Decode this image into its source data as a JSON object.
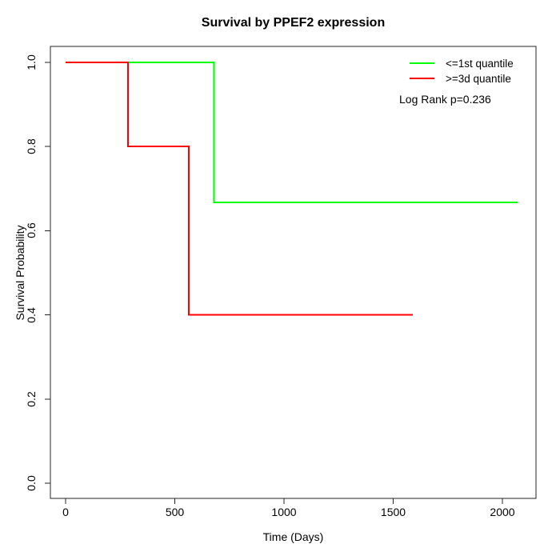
{
  "chart_data": {
    "type": "line",
    "subtype": "kaplan_meier_step",
    "title": "Survival by PPEF2 expression",
    "xlabel": "Time (Days)",
    "ylabel": "Survival Probability",
    "xlim": [
      0,
      2070
    ],
    "ylim": [
      0.0,
      1.0
    ],
    "x_tick_labels": [
      "0",
      "500",
      "1000",
      "1500",
      "2000"
    ],
    "x_tick_values": [
      0,
      500,
      1000,
      1500,
      2000
    ],
    "y_tick_labels": [
      "0.0",
      "0.2",
      "0.4",
      "0.6",
      "0.8",
      "1.0"
    ],
    "y_tick_values": [
      0.0,
      0.2,
      0.4,
      0.6,
      0.8,
      1.0
    ],
    "grid": false,
    "legend_position": "top-right-inside",
    "annotation": "Log Rank p=0.236",
    "axis_color": "#262626",
    "series": [
      {
        "name": "<=1st quantile",
        "color": "#00ff00",
        "points": [
          [
            0,
            1.0
          ],
          [
            680,
            1.0
          ],
          [
            680,
            0.667
          ],
          [
            2070,
            0.667
          ]
        ]
      },
      {
        "name": ">=3d quantile",
        "color": "#ff0000",
        "points": [
          [
            0,
            1.0
          ],
          [
            285,
            1.0
          ],
          [
            285,
            0.8
          ],
          [
            565,
            0.8
          ],
          [
            565,
            0.4
          ],
          [
            1590,
            0.4
          ]
        ]
      }
    ]
  }
}
